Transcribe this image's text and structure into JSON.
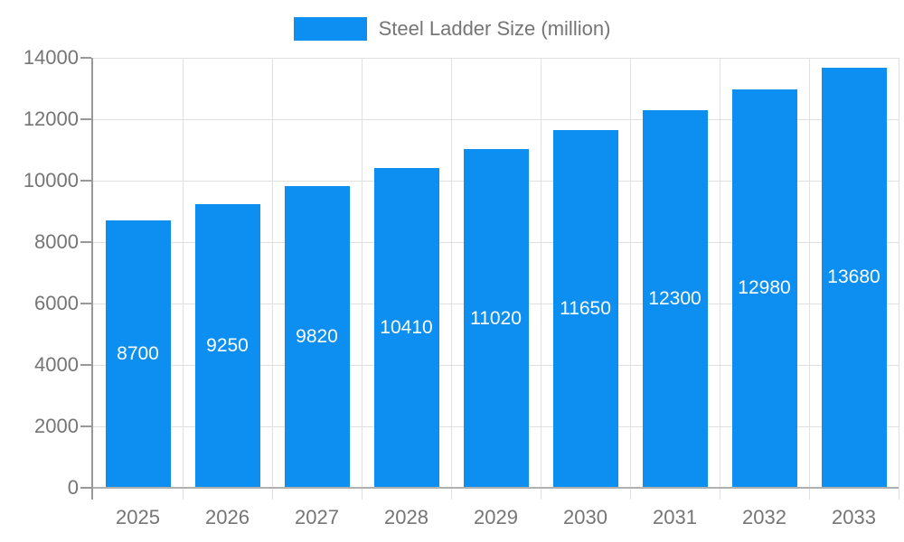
{
  "legend": {
    "label": "Steel Ladder Size (million)"
  },
  "colors": {
    "bar": "#0d8ff2",
    "legend_text": "#757575",
    "axis_text": "#757575",
    "bar_label_text": "#ffffff",
    "axis_line": "#999999",
    "zero_line": "#b0b0b0",
    "gridline": "#e0e0e0",
    "background": "#ffffff"
  },
  "chart_data": {
    "type": "bar",
    "title": "Steel Ladder Size (million)",
    "series_name": "Steel Ladder Size (million)",
    "categories": [
      "2025",
      "2026",
      "2027",
      "2028",
      "2029",
      "2030",
      "2031",
      "2032",
      "2033"
    ],
    "values": [
      8700,
      9250,
      9820,
      10410,
      11020,
      11650,
      12300,
      12980,
      13680
    ],
    "bar_labels": [
      "8700",
      "9250",
      "9820",
      "10410",
      "11020",
      "11650",
      "12300",
      "12980",
      "13680"
    ],
    "xlabel": "",
    "ylabel": "",
    "ylim": [
      0,
      14000
    ],
    "ytick_step": 2000,
    "yticks": [
      0,
      2000,
      4000,
      6000,
      8000,
      10000,
      12000,
      14000
    ],
    "grid": true,
    "legend_position": "top",
    "bar_labels_visible": true,
    "bar_label_position": "center"
  }
}
